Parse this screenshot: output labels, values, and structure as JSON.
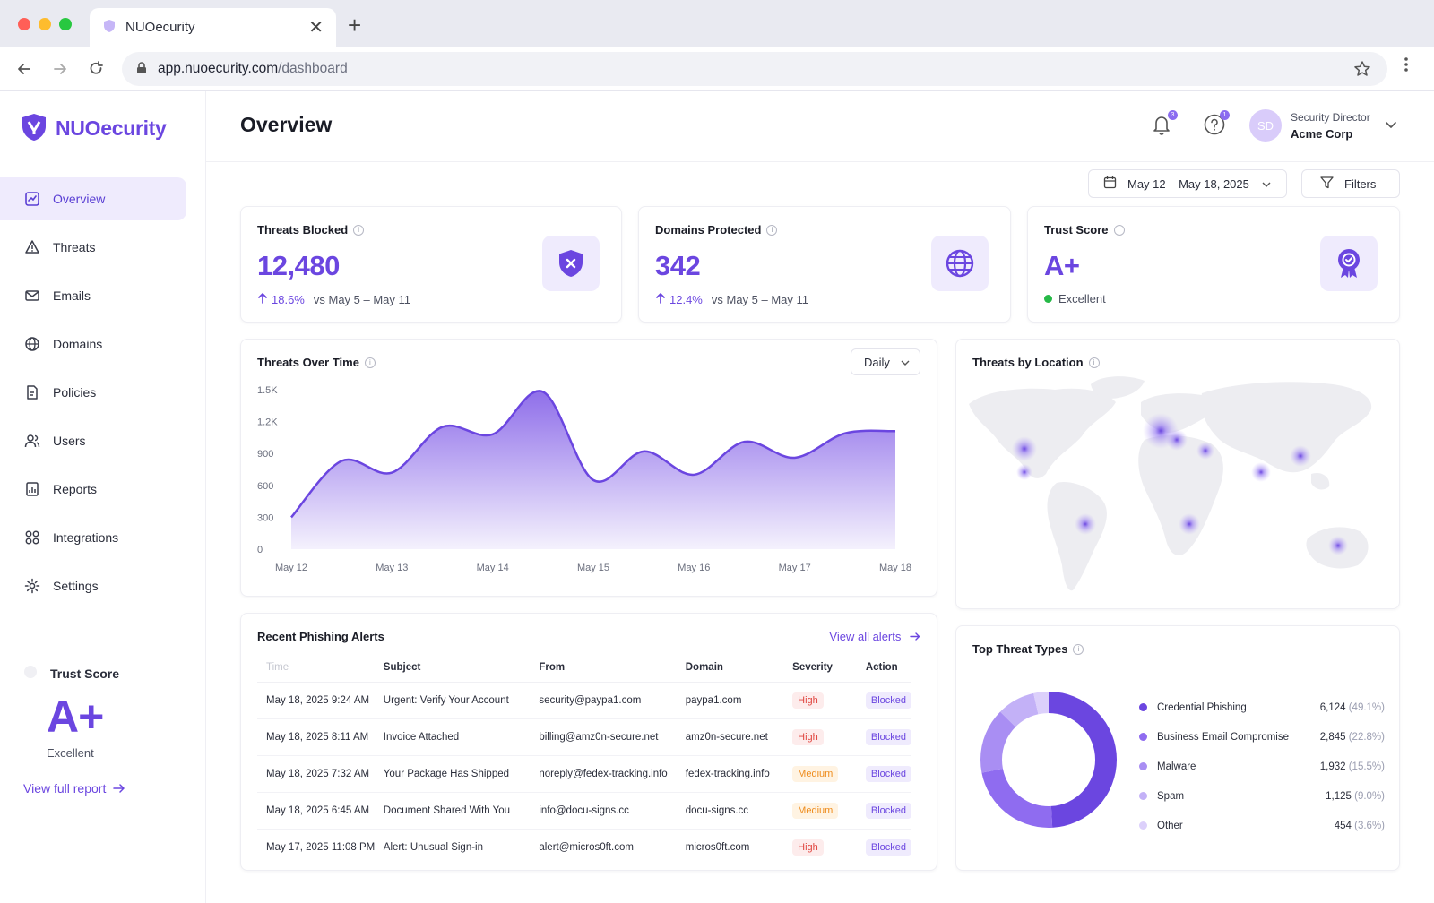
{
  "browser": {
    "tab_title": "NUOecurity",
    "url_host": "app.nuoecurity.com",
    "url_path": "/dashboard"
  },
  "brand": {
    "name": "NUOecurity",
    "color": "#6b46e0"
  },
  "sidebar": {
    "items": [
      {
        "label": "Overview",
        "icon": "overview-icon",
        "active": true
      },
      {
        "label": "Threats",
        "icon": "threats-icon"
      },
      {
        "label": "Emails",
        "icon": "mail-icon"
      },
      {
        "label": "Domains",
        "icon": "globe-icon"
      },
      {
        "label": "Policies",
        "icon": "policy-icon"
      },
      {
        "label": "Users",
        "icon": "users-icon"
      },
      {
        "label": "Reports",
        "icon": "reports-icon"
      },
      {
        "label": "Integrations",
        "icon": "integrations-icon"
      },
      {
        "label": "Settings",
        "icon": "gear-icon"
      }
    ],
    "trust_score": {
      "title": "Trust Score",
      "grade": "A+",
      "label": "Excellent",
      "link": "View full report"
    }
  },
  "header": {
    "title": "Overview",
    "notification_count": "3",
    "help_badge": "1",
    "user_initials": "SD",
    "user_role": "Security Director",
    "user_org": "Acme Corp"
  },
  "toolbar": {
    "date_range": "May 12 – May 18, 2025",
    "filters_label": "Filters"
  },
  "kpis": {
    "threats_blocked": {
      "title": "Threats Blocked",
      "value": "12,480",
      "change": "18.6%",
      "compare": "vs May 5 – May 11"
    },
    "domains_protected": {
      "title": "Domains Protected",
      "value": "342",
      "change": "12.4%",
      "compare": "vs May 5 – May 11"
    },
    "trust_score": {
      "title": "Trust Score",
      "value": "A+",
      "status": "Excellent"
    }
  },
  "threats_over_time": {
    "title": "Threats Over Time",
    "interval": "Daily"
  },
  "chart_data": {
    "type": "area",
    "title": "Threats Over Time",
    "x": [
      "May 12",
      "May 12.5",
      "May 13",
      "May 13.5",
      "May 14",
      "May 14.5",
      "May 15",
      "May 15.5",
      "May 16",
      "May 16.5",
      "May 17",
      "May 17.5",
      "May 18"
    ],
    "values": [
      300,
      830,
      720,
      1150,
      1080,
      1480,
      650,
      920,
      700,
      1010,
      860,
      1090,
      1110
    ],
    "tick_labels_x": [
      "May 12",
      "May 13",
      "May 14",
      "May 15",
      "May 16",
      "May 17",
      "May 18"
    ],
    "yticks": [
      "0",
      "300",
      "600",
      "900",
      "1.2K",
      "1.5K"
    ],
    "ylim": [
      0,
      1500
    ],
    "color": "#7b55e6",
    "grid": false
  },
  "threats_by_location": {
    "title": "Threats by Location"
  },
  "alerts": {
    "title": "Recent Phishing Alerts",
    "view_all": "View all alerts",
    "columns": [
      "Time",
      "Subject",
      "From",
      "Domain",
      "Severity",
      "Action"
    ],
    "rows": [
      {
        "time": "May 18, 2025 9:24 AM",
        "subject": "Urgent: Verify Your Account",
        "from": "security@paypa1.com",
        "domain": "paypa1.com",
        "severity": "High",
        "action": "Blocked"
      },
      {
        "time": "May 18, 2025 8:11 AM",
        "subject": "Invoice Attached",
        "from": "billing@amz0n-secure.net",
        "domain": "amz0n-secure.net",
        "severity": "High",
        "action": "Blocked"
      },
      {
        "time": "May 18, 2025 7:32 AM",
        "subject": "Your Package Has Shipped",
        "from": "noreply@fedex-tracking.info",
        "domain": "fedex-tracking.info",
        "severity": "Medium",
        "action": "Blocked"
      },
      {
        "time": "May 18, 2025 6:45 AM",
        "subject": "Document Shared With You",
        "from": "info@docu-signs.cc",
        "domain": "docu-signs.cc",
        "severity": "Medium",
        "action": "Blocked"
      },
      {
        "time": "May 17, 2025 11:08 PM",
        "subject": "Alert: Unusual Sign-in",
        "from": "alert@micros0ft.com",
        "domain": "micros0ft.com",
        "severity": "High",
        "action": "Blocked"
      }
    ]
  },
  "top_threat_types": {
    "title": "Top Threat Types",
    "items": [
      {
        "label": "Credential Phishing",
        "count": "6,124",
        "pct": "(49.1%)",
        "share": 49.1,
        "color": "#6b46e0"
      },
      {
        "label": "Business Email Compromise",
        "count": "2,845",
        "pct": "(22.8%)",
        "share": 22.8,
        "color": "#8f6cf0"
      },
      {
        "label": "Malware",
        "count": "1,932",
        "pct": "(15.5%)",
        "share": 15.5,
        "color": "#a98ef3"
      },
      {
        "label": "Spam",
        "count": "1,125",
        "pct": "(9.0%)",
        "share": 9.0,
        "color": "#c3b1f7"
      },
      {
        "label": "Other",
        "count": "454",
        "pct": "(3.6%)",
        "share": 3.6,
        "color": "#dcd0fb"
      }
    ]
  }
}
